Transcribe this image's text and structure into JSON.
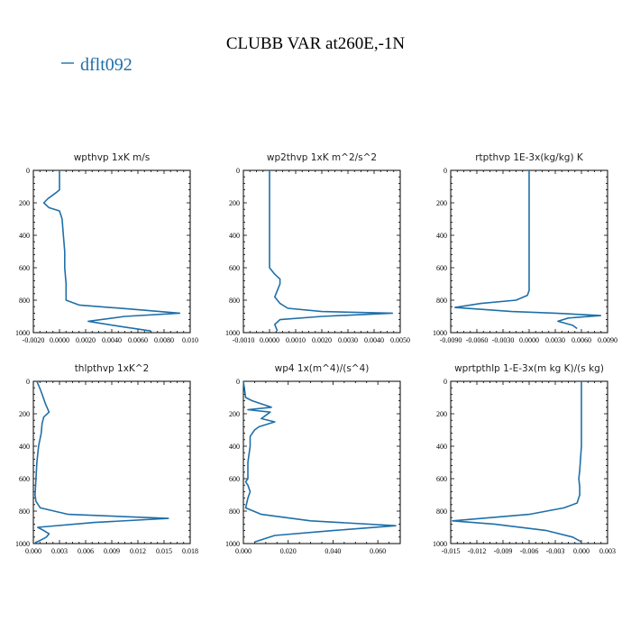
{
  "title": "CLUBB VAR at260E,-1N",
  "legend": {
    "label": "dflt092",
    "color": "#1f6fa8"
  },
  "colors": {
    "series": "#1f6fa8",
    "axis": "#000000"
  },
  "chart_data": [
    {
      "type": "line",
      "title": "wpthvp   1xK  m/s",
      "series": [
        {
          "name": "dflt092",
          "x": [
            0.0,
            0.0,
            -0.0003,
            -0.0009,
            -0.0012,
            -0.0008,
            0.0,
            0.0002,
            0.0003,
            0.0004,
            0.0004,
            0.0005,
            0.0005,
            0.0015,
            0.0055,
            0.0092,
            0.005,
            0.0022,
            0.0045,
            0.007
          ],
          "y": [
            0,
            120,
            140,
            175,
            200,
            230,
            250,
            300,
            400,
            500,
            600,
            700,
            800,
            830,
            855,
            880,
            900,
            930,
            960,
            990
          ]
        }
      ],
      "xlim": [
        -0.002,
        0.01
      ],
      "ylim": [
        1000,
        0
      ],
      "xticks": [
        -0.002,
        0.0,
        0.002,
        0.004,
        0.006,
        0.008,
        0.01
      ],
      "xtick_labels": [
        "-0.0020",
        "0.0000",
        "0.0020",
        "0.0040",
        "0.0060",
        "0.0080",
        "0.010"
      ],
      "yticks": [
        0,
        200,
        400,
        600,
        800,
        1000
      ],
      "ytick_labels": [
        "0",
        "200",
        "400",
        "600",
        "800",
        "1000"
      ]
    },
    {
      "type": "line",
      "title": "wp2thvp   1xK  m^2/s^2",
      "series": [
        {
          "name": "dflt092",
          "x": [
            0.0,
            0.0,
            0.0,
            0.0,
            0.0002,
            0.0004,
            0.0004,
            0.0003,
            0.0002,
            0.0004,
            0.0007,
            0.002,
            0.0047,
            0.002,
            0.0004,
            0.0002,
            0.0003
          ],
          "y": [
            0,
            200,
            400,
            600,
            640,
            670,
            700,
            740,
            780,
            820,
            850,
            870,
            880,
            900,
            920,
            950,
            990
          ]
        }
      ],
      "xlim": [
        -0.001,
        0.005
      ],
      "ylim": [
        1000,
        0
      ],
      "xticks": [
        -0.001,
        0.0,
        0.001,
        0.002,
        0.003,
        0.004,
        0.005
      ],
      "xtick_labels": [
        "-0.0010",
        "0.0000",
        "0.0010",
        "0.0020",
        "0.0030",
        "0.0040",
        "0.0050"
      ],
      "yticks": [
        0,
        200,
        400,
        600,
        800,
        1000
      ],
      "ytick_labels": [
        "0",
        "200",
        "400",
        "600",
        "800",
        "1000"
      ]
    },
    {
      "type": "line",
      "title": "rtpthvp   1E-3x(kg/kg)  K",
      "series": [
        {
          "name": "dflt092",
          "x": [
            0.0,
            0.0,
            0.0,
            0.0,
            0.0,
            -0.0002,
            -0.0015,
            -0.0055,
            -0.0085,
            -0.002,
            0.003,
            0.0082,
            0.0045,
            0.0033,
            0.005,
            0.0055
          ],
          "y": [
            0,
            200,
            400,
            600,
            740,
            770,
            800,
            820,
            845,
            870,
            880,
            895,
            910,
            930,
            955,
            975
          ]
        }
      ],
      "xlim": [
        -0.009,
        0.009
      ],
      "ylim": [
        1000,
        0
      ],
      "xticks": [
        -0.009,
        -0.006,
        -0.003,
        0.0,
        0.003,
        0.006,
        0.009
      ],
      "xtick_labels": [
        "-0.0090",
        "-0.0060",
        "-0.0030",
        "0.0000",
        "0.0030",
        "0.0060",
        "0.0090"
      ],
      "yticks": [
        0,
        200,
        400,
        600,
        800,
        1000
      ],
      "ytick_labels": [
        "0",
        "200",
        "400",
        "600",
        "800",
        "1000"
      ]
    },
    {
      "type": "line",
      "title": "thlpthvp   1xK^2",
      "series": [
        {
          "name": "dflt092",
          "x": [
            0.0004,
            0.0008,
            0.001,
            0.0014,
            0.0018,
            0.0012,
            0.001,
            0.0009,
            0.0006,
            0.0004,
            0.0003,
            0.0002,
            0.0003,
            0.0008,
            0.004,
            0.0155,
            0.007,
            0.0005,
            0.0012,
            0.0018,
            0.0015,
            0.0008,
            0.0002
          ],
          "y": [
            0,
            50,
            80,
            140,
            190,
            220,
            260,
            320,
            400,
            500,
            600,
            700,
            740,
            780,
            820,
            845,
            870,
            900,
            920,
            940,
            960,
            980,
            995
          ]
        }
      ],
      "xlim": [
        0.0,
        0.018
      ],
      "ylim": [
        1000,
        0
      ],
      "xticks": [
        0.0,
        0.003,
        0.006,
        0.009,
        0.012,
        0.015,
        0.018
      ],
      "xtick_labels": [
        "0.000",
        "0.003",
        "0.006",
        "0.009",
        "0.012",
        "0.015",
        "0.018"
      ],
      "yticks": [
        0,
        200,
        400,
        600,
        800,
        1000
      ],
      "ytick_labels": [
        "0",
        "200",
        "400",
        "600",
        "800",
        "1000"
      ]
    },
    {
      "type": "line",
      "title": "wp4   1x(m^4)/(s^4)",
      "series": [
        {
          "name": "dflt092",
          "x": [
            0.0,
            0.001,
            0.004,
            0.0125,
            0.002,
            0.012,
            0.008,
            0.014,
            0.007,
            0.005,
            0.003,
            0.003,
            0.002,
            0.002,
            0.001,
            0.002,
            0.003,
            0.002,
            0.001,
            0.008,
            0.03,
            0.068,
            0.04,
            0.014,
            0.005
          ],
          "y": [
            0,
            100,
            120,
            160,
            175,
            190,
            230,
            250,
            280,
            300,
            340,
            400,
            500,
            600,
            620,
            640,
            680,
            720,
            780,
            820,
            860,
            890,
            920,
            950,
            990
          ]
        }
      ],
      "xlim": [
        0.0,
        0.07
      ],
      "ylim": [
        1000,
        0
      ],
      "xticks": [
        0.0,
        0.02,
        0.04,
        0.06
      ],
      "xtick_labels": [
        "0.000",
        "0.020",
        "0.040",
        "0.060"
      ],
      "yticks": [
        0,
        200,
        400,
        600,
        800,
        1000
      ],
      "ytick_labels": [
        "0",
        "200",
        "400",
        "600",
        "800",
        "1000"
      ]
    },
    {
      "type": "line",
      "title": "wprtpthlp   1-E-3x(m kg K)/(s kg)",
      "series": [
        {
          "name": "dflt092",
          "x": [
            0.0,
            0.0,
            0.0,
            -0.0002,
            -0.0003,
            -0.0002,
            -0.0002,
            -0.0005,
            -0.002,
            -0.006,
            -0.0148,
            -0.01,
            -0.004,
            -0.001,
            0.0
          ],
          "y": [
            0,
            200,
            400,
            550,
            600,
            650,
            700,
            750,
            780,
            820,
            860,
            880,
            920,
            960,
            990
          ]
        }
      ],
      "xlim": [
        -0.015,
        0.003
      ],
      "ylim": [
        1000,
        0
      ],
      "xticks": [
        -0.015,
        -0.012,
        -0.009,
        -0.006,
        -0.003,
        0.0,
        0.003
      ],
      "xtick_labels": [
        "-0.015",
        "-0.012",
        "-0.009",
        "-0.006",
        "-0.003",
        "0.000",
        "0.003"
      ],
      "yticks": [
        0,
        200,
        400,
        600,
        800,
        1000
      ],
      "ytick_labels": [
        "0",
        "200",
        "400",
        "600",
        "800",
        "1000"
      ]
    }
  ]
}
